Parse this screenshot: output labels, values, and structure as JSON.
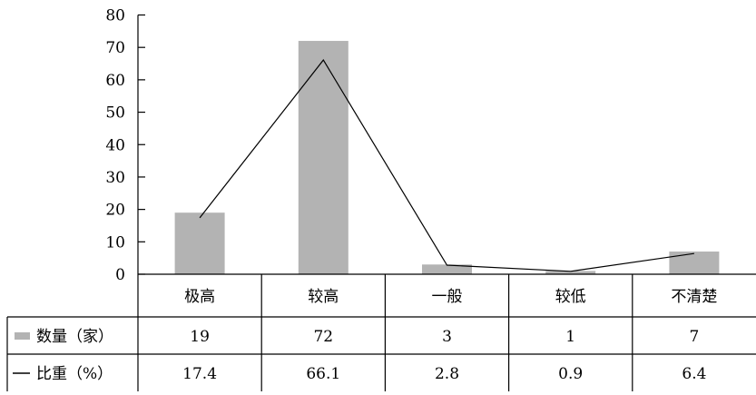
{
  "chart_data": {
    "type": "bar",
    "categories": [
      "极高",
      "较高",
      "一般",
      "较低",
      "不清楚"
    ],
    "series": [
      {
        "name": "数量（家）",
        "kind": "bar",
        "color": "#b3b3b3",
        "values": [
          19,
          72,
          3,
          1,
          7
        ]
      },
      {
        "name": "比重（%）",
        "kind": "line",
        "color": "#000000",
        "values": [
          17.4,
          66.1,
          2.8,
          0.9,
          6.4
        ]
      }
    ],
    "ylim": [
      0,
      80
    ],
    "yticks": [
      0,
      10,
      20,
      30,
      40,
      50,
      60,
      70,
      80
    ],
    "data_table": {
      "rows": [
        {
          "label": "数量（家）",
          "cells": [
            "19",
            "72",
            "3",
            "1",
            "7"
          ]
        },
        {
          "label": "比重（%）",
          "cells": [
            "17.4",
            "66.1",
            "2.8",
            "0.9",
            "6.4"
          ]
        }
      ]
    },
    "grid": false,
    "legend": "in data table"
  }
}
